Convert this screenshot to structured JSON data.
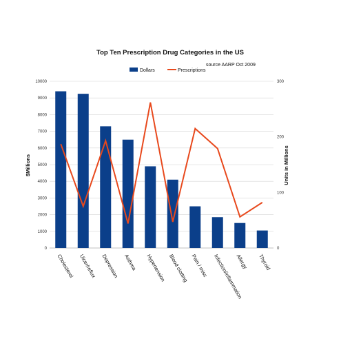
{
  "chart_data": {
    "type": "bar",
    "title": "Top Ten Prescription Drug Categories in the US",
    "source": "source AARP Oct 2009",
    "categories": [
      "Cholesterol",
      "Ulcer/reflux",
      "Depression",
      "Asthma",
      "Hypertension",
      "Blood clotting",
      "Pain / misc",
      "Infection/inflammation",
      "Allergy",
      "Thyroid"
    ],
    "series": [
      {
        "name": "Dollars",
        "type": "bar",
        "axis": "left",
        "color": "#0B3F8A",
        "values": [
          9400,
          9250,
          7300,
          6500,
          4900,
          4100,
          2500,
          1850,
          1500,
          1050
        ]
      },
      {
        "name": "Prescriptions",
        "type": "line",
        "axis": "right",
        "color": "#E8491D",
        "values": [
          187,
          75,
          193,
          44,
          262,
          47,
          215,
          179,
          56,
          82
        ]
      }
    ],
    "ylabel": "$Millions",
    "y2label": "Units in Millions",
    "ylim": [
      0,
      10000
    ],
    "yticks": [
      0,
      1000,
      2000,
      3000,
      4000,
      5000,
      6000,
      7000,
      8000,
      9000,
      10000
    ],
    "y2lim": [
      0,
      300
    ],
    "y2ticks": [
      0,
      100,
      200,
      300
    ],
    "grid": true,
    "legend_position": "top-center"
  }
}
